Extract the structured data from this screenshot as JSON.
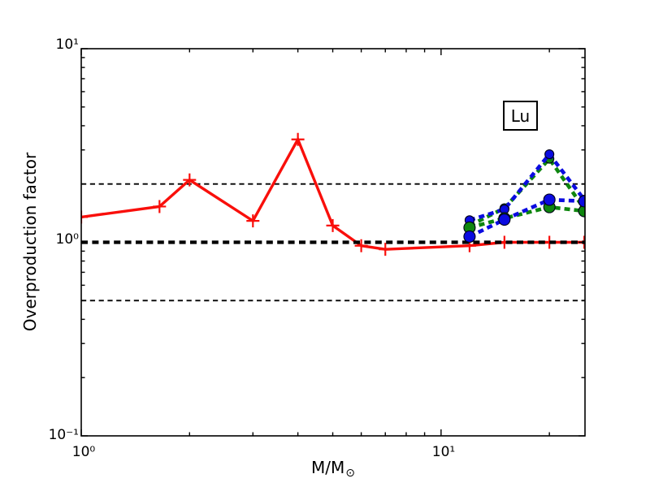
{
  "chart_data": {
    "type": "line",
    "title": "",
    "element_label": "Lu",
    "ylabel": "Overproduction factor",
    "xlabel_main": "M/M",
    "xlabel_sub": "⊙",
    "x_scale": "log",
    "y_scale": "log",
    "xlim": [
      1,
      25.12
    ],
    "ylim": [
      0.1,
      10
    ],
    "grid": false,
    "legend": "none",
    "x_major_ticks": [
      {
        "value": 1,
        "label": "10⁰"
      },
      {
        "value": 10,
        "label": "10¹"
      }
    ],
    "y_major_ticks": [
      {
        "value": 10,
        "label": "10¹"
      },
      {
        "value": 1,
        "label": "10⁰"
      },
      {
        "value": 0.1,
        "label": "10⁻¹"
      }
    ],
    "x_minor_ticks": [
      2,
      3,
      4,
      5,
      6,
      7,
      8,
      9,
      20
    ],
    "y_minor_ticks": [
      0.2,
      0.3,
      0.4,
      0.5,
      0.6,
      0.7,
      0.8,
      0.9,
      2,
      3,
      4,
      5,
      6,
      7,
      8,
      9
    ],
    "reference_lines": [
      {
        "y": 2,
        "color": "#000000",
        "weight": "thin"
      },
      {
        "y": 1,
        "color": "#000000",
        "weight": "thick"
      },
      {
        "y": 0.5,
        "color": "#000000",
        "weight": "thin"
      }
    ],
    "series": [
      {
        "name": "low-mass-red-solid",
        "color": "#f90f0b",
        "line": "solid",
        "marker": "plus",
        "marker_size": 8,
        "x": [
          1,
          1.65,
          2,
          3,
          4,
          5,
          6,
          7,
          12,
          15,
          20,
          25
        ],
        "y": [
          1.35,
          1.53,
          2.1,
          1.29,
          3.4,
          1.22,
          0.96,
          0.92,
          0.96,
          1.0,
          1.0,
          1.0
        ]
      },
      {
        "name": "massive-green-upper-dashed",
        "color": "#0e860e",
        "line": "dashed",
        "marker": "circle",
        "marker_size": 5.5,
        "x": [
          12,
          15,
          20,
          25
        ],
        "y": [
          1.22,
          1.5,
          2.7,
          1.49
        ]
      },
      {
        "name": "massive-blue-upper-dashed",
        "color": "#0b0be0",
        "line": "dashed",
        "marker": "circle",
        "marker_size": 5.5,
        "x": [
          12,
          15,
          20,
          25
        ],
        "y": [
          1.3,
          1.48,
          2.85,
          1.66
        ]
      },
      {
        "name": "massive-green-lower-dashed",
        "color": "#0e860e",
        "line": "dashed",
        "marker": "circle",
        "marker_size": 7,
        "x": [
          12,
          15,
          20,
          25
        ],
        "y": [
          1.19,
          1.33,
          1.52,
          1.45
        ]
      },
      {
        "name": "massive-blue-lower-dashed",
        "color": "#0b0be0",
        "line": "dashed",
        "marker": "circle",
        "marker_size": 7,
        "x": [
          12,
          15,
          20,
          25
        ],
        "y": [
          1.07,
          1.31,
          1.66,
          1.63
        ]
      }
    ]
  }
}
